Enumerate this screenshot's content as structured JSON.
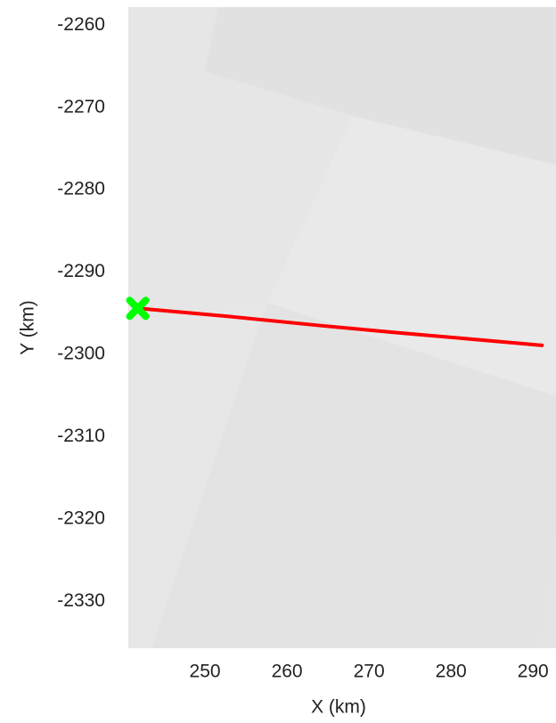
{
  "chart_data": {
    "type": "line",
    "x_label": "X (km)",
    "y_label": "Y (km)",
    "x": [
      241.8,
      252,
      264.1,
      272.8,
      282,
      291.1
    ],
    "series": [
      {
        "color": "#ff0000",
        "values": [
          -2294.4,
          -2295.3,
          -2296.5,
          -2297.3,
          -2298.1,
          -2298.9
        ]
      }
    ],
    "marker": {
      "x": 241.8,
      "y": -2294.4,
      "color": "#00ff00"
    },
    "xlim": [
      240.65,
      292.8
    ],
    "ylim": [
      -2335.7,
      -2257.8
    ],
    "xticks": [
      250,
      260,
      270,
      280,
      290
    ],
    "yticks": [
      -2260,
      -2270,
      -2280,
      -2290,
      -2300,
      -2310,
      -2320,
      -2330
    ]
  }
}
